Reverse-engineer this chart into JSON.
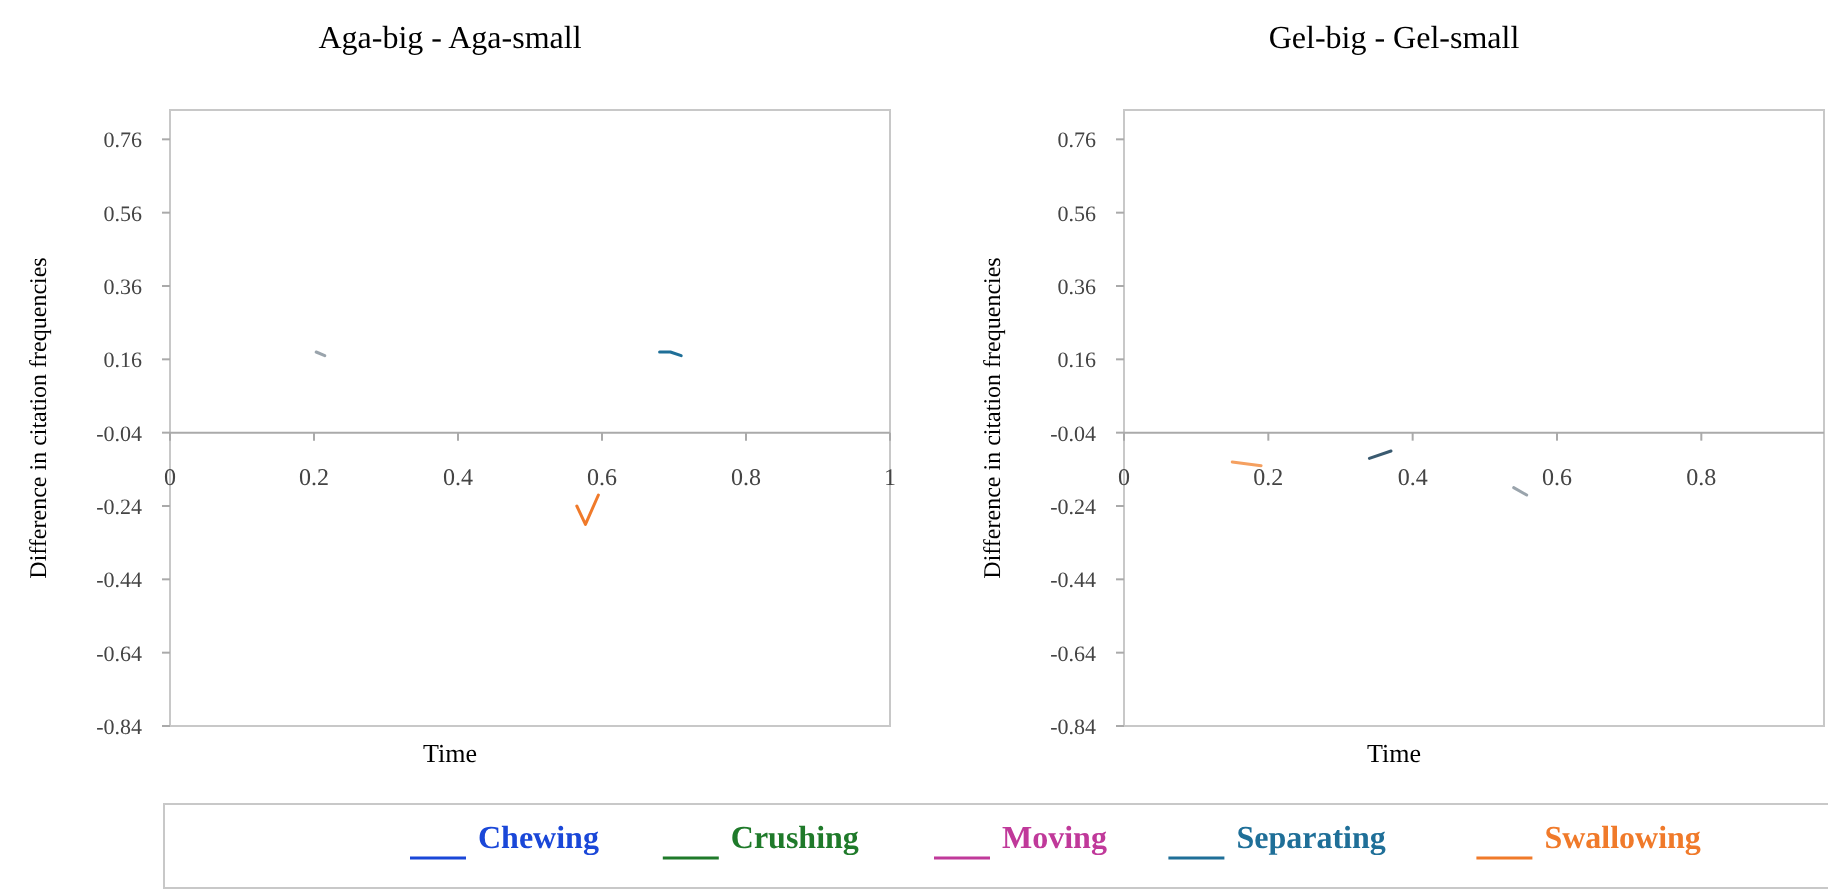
{
  "chart_data": [
    {
      "type": "line",
      "title": "Aga-big - Aga-small",
      "xlabel": "Time",
      "ylabel": "Difference in citation frequencies",
      "xlim": [
        0,
        1
      ],
      "xticks": [
        0,
        0.2,
        0.4,
        0.6,
        0.8,
        1
      ],
      "ylim": [
        -0.84,
        0.84
      ],
      "yticks": [
        0.76,
        0.56,
        0.36,
        0.16,
        -0.04,
        -0.24,
        -0.44,
        -0.64,
        -0.84
      ],
      "legend": "bottom",
      "series": [
        {
          "name": "Chewing",
          "color": "#1a47d8"
        },
        {
          "name": "Crushing",
          "color": "#1f7a2a"
        },
        {
          "name": "Moving",
          "color": "#c0399a"
        },
        {
          "name": "Separating",
          "color": "#1f6f98",
          "x": [
            0.68,
            0.695,
            0.71
          ],
          "values": [
            0.18,
            0.18,
            0.17
          ]
        },
        {
          "name": "Swallowing",
          "color": "#f07a2a",
          "x": [
            0.565,
            0.577,
            0.595
          ],
          "values": [
            -0.24,
            -0.29,
            -0.21
          ]
        },
        {
          "color": "#9aa4ac",
          "x": [
            0.203,
            0.215
          ],
          "values": [
            0.18,
            0.17
          ]
        }
      ]
    },
    {
      "type": "line",
      "title": "Gel-big - Gel-small",
      "xlabel": "Time",
      "ylabel": "Difference in citation frequencies",
      "xlim": [
        0,
        0.97
      ],
      "xticks": [
        0,
        0.2,
        0.4,
        0.6,
        0.8
      ],
      "ylim": [
        -0.84,
        0.84
      ],
      "yticks": [
        0.76,
        0.56,
        0.36,
        0.16,
        -0.04,
        -0.24,
        -0.44,
        -0.64,
        -0.84
      ],
      "series": [
        {
          "color": "#f5a060",
          "x": [
            0.15,
            0.19
          ],
          "values": [
            -0.12,
            -0.13
          ]
        },
        {
          "color": "#3a5a70",
          "x": [
            0.34,
            0.37
          ],
          "values": [
            -0.11,
            -0.09
          ]
        },
        {
          "color": "#9aa4ac",
          "x": [
            0.54,
            0.558
          ],
          "values": [
            -0.19,
            -0.21
          ]
        }
      ]
    }
  ]
}
